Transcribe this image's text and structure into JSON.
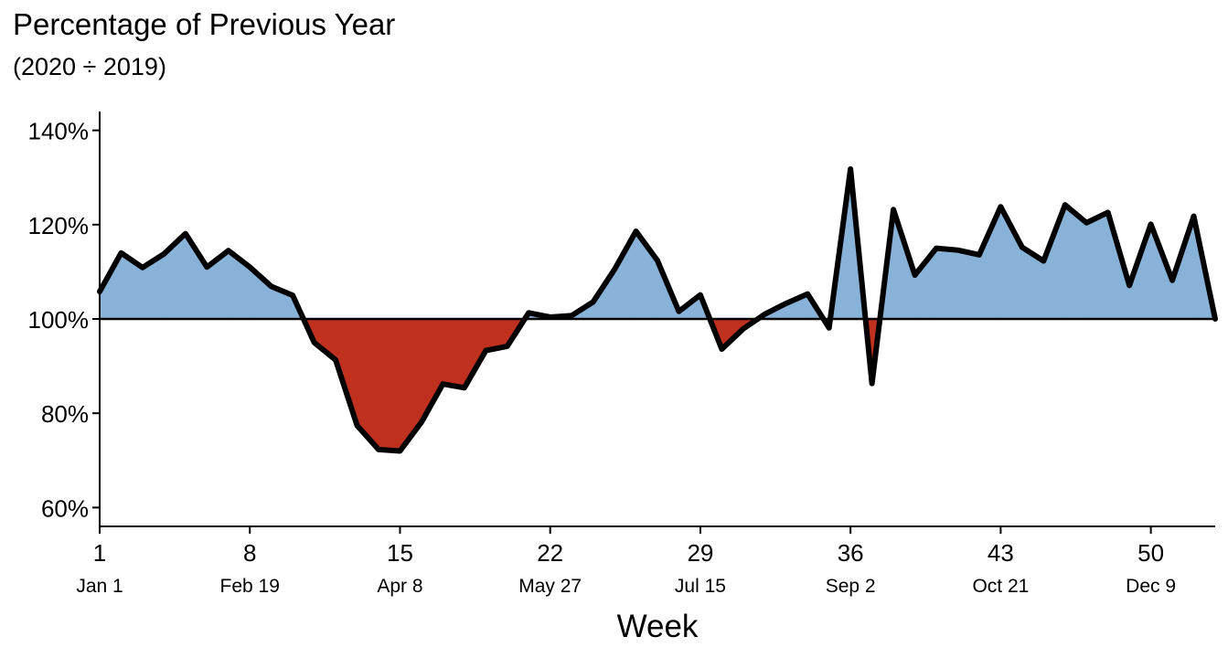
{
  "chart_data": {
    "type": "area",
    "title": "Percentage of Previous Year",
    "subtitle": "(2020 ÷ 2019)",
    "xlabel": "Week",
    "ylabel": "",
    "xlim": [
      1,
      53
    ],
    "ylim": [
      56,
      144
    ],
    "baseline": 100,
    "x_ticks": [
      1,
      8,
      15,
      22,
      29,
      36,
      43,
      50
    ],
    "x_tick_labels": [
      "1",
      "8",
      "15",
      "22",
      "29",
      "36",
      "43",
      "50"
    ],
    "x_date_labels": [
      "Jan 1",
      "Feb 19",
      "Apr 8",
      "May 27",
      "Jul 15",
      "Sep 2",
      "Oct 21",
      "Dec 9"
    ],
    "y_ticks": [
      60,
      80,
      100,
      120,
      140
    ],
    "y_tick_labels": [
      "60%",
      "80%",
      "100%",
      "120%",
      "140%"
    ],
    "colors": {
      "above": "#89B2D8",
      "below": "#BF311E",
      "line": "#000000"
    },
    "grid": false,
    "legend": "none",
    "x": [
      1,
      2,
      3,
      4,
      5,
      6,
      7,
      8,
      9,
      10,
      11,
      12,
      13,
      14,
      15,
      16,
      17,
      18,
      19,
      20,
      21,
      22,
      23,
      24,
      25,
      26,
      27,
      28,
      29,
      30,
      31,
      32,
      33,
      34,
      35,
      36,
      37,
      38,
      39,
      40,
      41,
      42,
      43,
      44,
      45,
      46,
      47,
      48,
      49,
      50,
      51,
      52,
      53
    ],
    "values": [
      105.8,
      114.0,
      110.9,
      113.8,
      118.1,
      111.0,
      114.5,
      111.0,
      106.9,
      105.0,
      95.0,
      91.3,
      77.4,
      72.3,
      72.0,
      78.1,
      86.2,
      85.4,
      93.3,
      94.2,
      101.3,
      100.4,
      100.7,
      103.6,
      110.5,
      118.6,
      112.4,
      101.6,
      105.1,
      93.6,
      97.9,
      101.0,
      103.3,
      105.3,
      98.1,
      131.8,
      86.3,
      123.2,
      109.3,
      115.0,
      114.6,
      113.6,
      123.8,
      115.2,
      112.3,
      124.2,
      120.4,
      122.6,
      107.1,
      120.1,
      108.2,
      121.8,
      100.0
    ]
  }
}
